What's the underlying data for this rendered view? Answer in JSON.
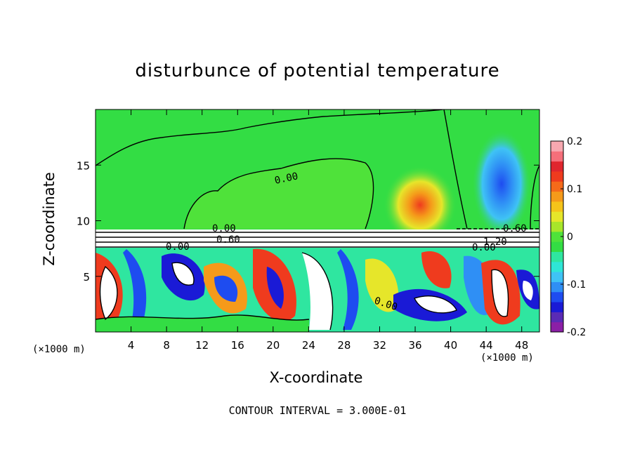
{
  "chart_data": {
    "type": "heatmap",
    "title": "disturbunce of potential temperature",
    "xlabel": "X-coordinate",
    "ylabel": "Z-coordinate",
    "x_unit_label": "(×1000 m)",
    "y_unit_label": "(×1000 m)",
    "xlim": [
      0,
      50
    ],
    "ylim": [
      0,
      20
    ],
    "x_ticks": [
      4,
      8,
      12,
      16,
      20,
      24,
      28,
      32,
      36,
      40,
      44,
      48
    ],
    "y_ticks": [
      5,
      10,
      15
    ],
    "colorbar": {
      "ticks": [
        "0.2",
        "0.1",
        "0",
        "-0.1",
        "-0.2"
      ],
      "tick_values": [
        0.2,
        0.1,
        0,
        -0.1,
        -0.2
      ],
      "range": [
        -0.2,
        0.2
      ],
      "colors": [
        "#8b1fa6",
        "#5a2bb5",
        "#1a1ad6",
        "#1e4cf0",
        "#2f8ff5",
        "#3fc3f5",
        "#2fe6d6",
        "#2fe6a0",
        "#33dd44",
        "#4fe23a",
        "#a8e62a",
        "#e6e62a",
        "#f5c41a",
        "#f59a1a",
        "#f56a1a",
        "#ef3b1e",
        "#e0262e",
        "#f56f7a",
        "#f7a8b0"
      ]
    },
    "contour_labels": [
      "0.00",
      "0.00",
      "0.00",
      "0.60",
      "0.60",
      "1.20",
      "0.00",
      "0.00"
    ],
    "contour_interval_text": "CONTOUR INTERVAL = 3.000E-01",
    "grid": false,
    "legend": "colorbar right"
  }
}
